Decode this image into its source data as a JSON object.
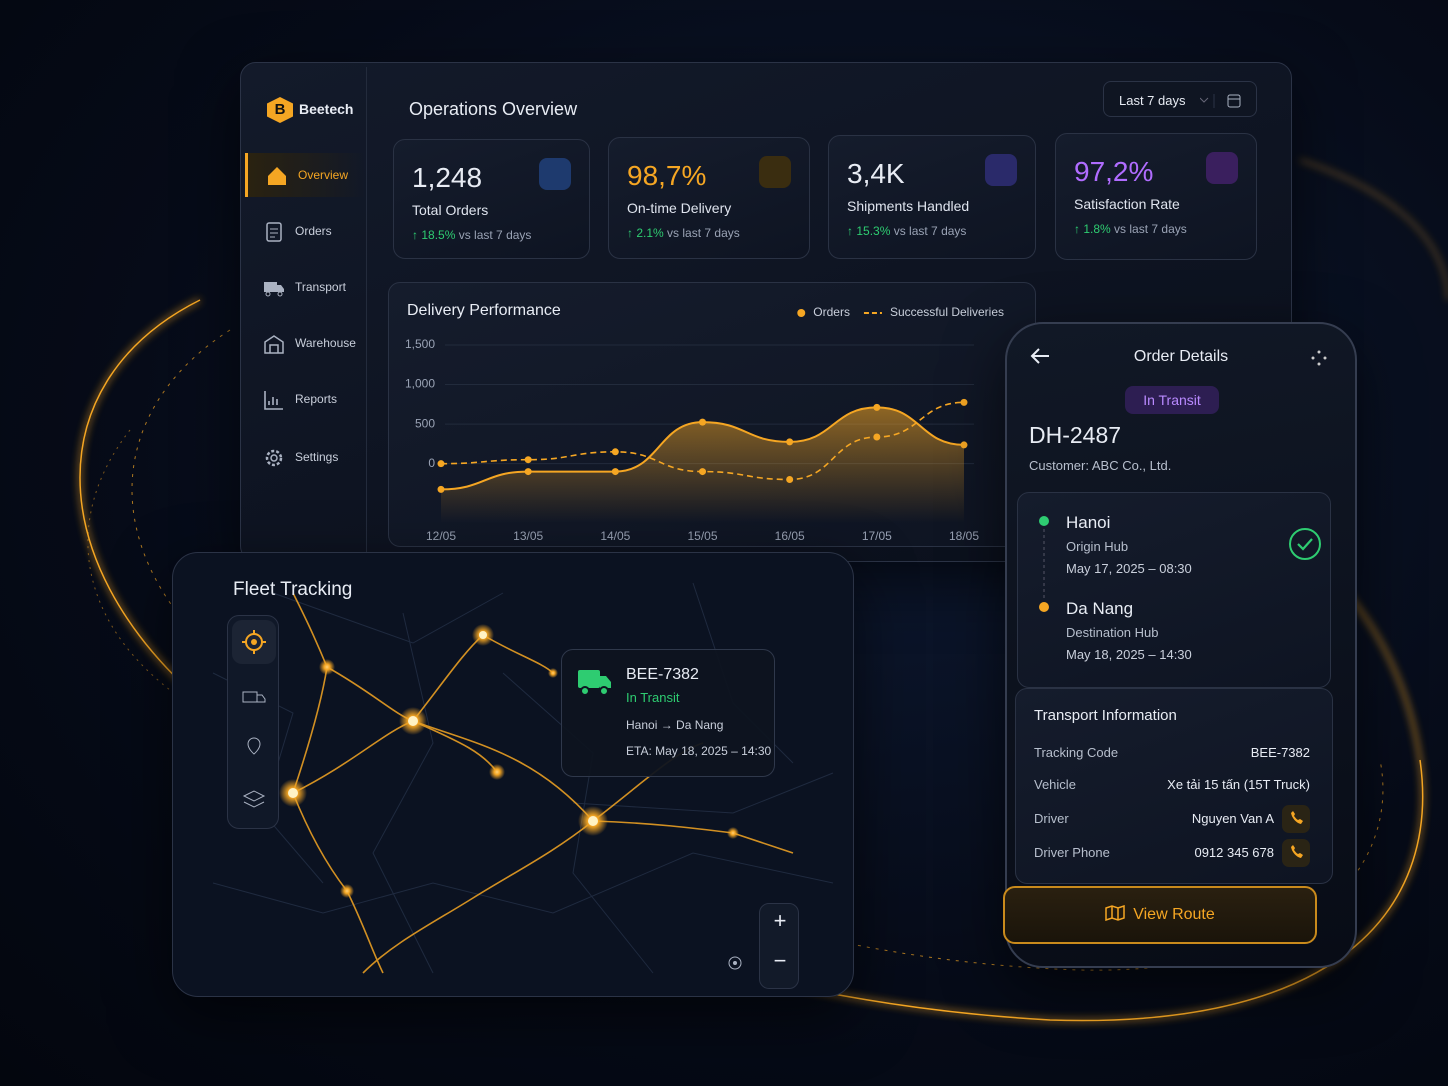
{
  "sidebar": {
    "logo": "B",
    "brand": "Beetech",
    "items": [
      "Overview",
      "Orders",
      "Transport",
      "Warehouse",
      "Reports",
      "Settings"
    ]
  },
  "header": {
    "title": "Operations Overview",
    "range": "Last 7 days"
  },
  "kpis": [
    {
      "value": "1,248",
      "label": "Total Orders",
      "change": "18.5%",
      "compare": "vs last 7 days"
    },
    {
      "value": "98,7%",
      "label": "On-time Delivery",
      "change": "2.1%",
      "compare": "vs last 7 days"
    },
    {
      "value": "3,4K",
      "label": "Shipments Handled",
      "change": "15.3%",
      "compare": "vs last 7 days"
    },
    {
      "value": "97,2%",
      "label": "Satisfaction Rate",
      "change": "1.8%",
      "compare": "vs last 7 days"
    }
  ],
  "chart_data": {
    "type": "line",
    "title": "Delivery Performance",
    "categories": [
      "12/05",
      "13/05",
      "14/05",
      "15/05",
      "16/05",
      "17/05",
      "18/05"
    ],
    "series": [
      {
        "name": "Orders",
        "color": "#f5a623",
        "values": [
          -325,
          -100,
          -100,
          525,
          275,
          712,
          237
        ]
      },
      {
        "name": "Successful Deliveries",
        "color": "#f5a623",
        "dashed": true,
        "values": [
          0,
          50,
          150,
          -100,
          -200,
          337,
          775
        ]
      }
    ],
    "ylim": [
      -750,
      1500
    ],
    "yticks": [
      0,
      500,
      {
        "value": 1000,
        "label": "1,000"
      },
      {
        "value": 1500,
        "label": "1,500"
      }
    ],
    "grid": true,
    "legend": "top-right"
  },
  "fleet": {
    "title": "Fleet Tracking",
    "zoom": [
      "+",
      "−"
    ],
    "vehicle": {
      "code": "BEE-7382",
      "status": "In Transit",
      "from": "Hanoi",
      "to": "Da Nang",
      "eta": "ETA: May 18, 2025 – 14:30"
    }
  },
  "order": {
    "title": "Order Details",
    "status": "In Transit",
    "id": "DH-2487",
    "customer": "Customer: ABC Co., Ltd.",
    "stops": [
      {
        "city": "Hanoi",
        "role": "Origin Hub",
        "time": "May 17, 2025 – 08:30"
      },
      {
        "city": "Da Nang",
        "role": "Destination Hub",
        "time": "May 18, 2025 – 14:30"
      }
    ],
    "transport": {
      "title": "Transport Information",
      "rows": [
        [
          "Tracking Code",
          "BEE-7382"
        ],
        [
          "Vehicle",
          "Xe tải 15 tấn (15T Truck)"
        ],
        [
          "Driver",
          "Nguyen Van A"
        ],
        [
          "Driver Phone",
          "0912 345 678"
        ]
      ]
    },
    "button": "View Route"
  }
}
